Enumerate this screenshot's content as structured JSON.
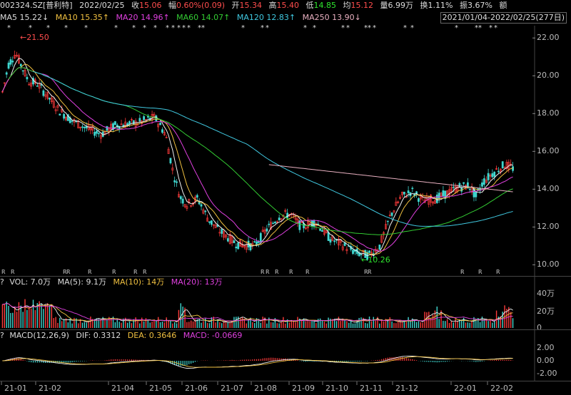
{
  "header": {
    "code": "002324.SZ[普利特]",
    "date": "2022/02/25",
    "close_label": "收",
    "close": "15.06",
    "change_label": "幅",
    "change": "0.60%(0.09)",
    "open_label": "开",
    "open": "15.34",
    "high_label": "高",
    "high": "15.40",
    "low_label": "低",
    "low": "14.85",
    "avg_label": "均",
    "avg": "15.12",
    "volume_label": "量",
    "volume": "6.99万",
    "turnover_label": "换",
    "turnover": "1.11%",
    "amp_label": "振",
    "amp": "3.67%",
    "extra_label": "额"
  },
  "ma": {
    "ma5": "MA5 15.22↓",
    "ma10": "MA10 15.35↑",
    "ma20": "MA20 14.96↑",
    "ma60": "MA60 14.07↑",
    "ma120": "MA120 12.83↑",
    "ma250": "MA250 13.90↓"
  },
  "range": "2021/01/04-2022/02/25(277日)",
  "price_axis": [
    "22.00",
    "20.00",
    "18.00",
    "16.00",
    "14.00",
    "12.00",
    "10.00"
  ],
  "annotations": {
    "high": "21.50",
    "low": "10.26"
  },
  "vol_header": {
    "label": "VOL: 7.0万",
    "ma5": "MA(5): 9.1万",
    "ma10": "MA(10): 14万",
    "ma20": "MA(20): 13万"
  },
  "vol_axis": [
    "40万",
    "20万",
    "0"
  ],
  "macd_header": {
    "label": "MACD(12,26,9)",
    "dif": "DIF: 0.3312",
    "dea": "DEA: 0.3646",
    "macd": "MACD: -0.0669"
  },
  "macd_axis": [
    "2.00",
    "0.00",
    "-2.00"
  ],
  "x_axis": [
    "21-01",
    "21-02",
    "21-04",
    "21-05",
    "21-06",
    "21-07",
    "21-08",
    "21-09",
    "21-10",
    "21-11",
    "21-12",
    "22-01",
    "22-02"
  ],
  "colors": {
    "up": "#ff3b3b",
    "down": "#3fd7d0",
    "ma5": "#f0f0f0",
    "ma10": "#f0c040",
    "ma20": "#e040e0",
    "ma60": "#33cc33",
    "ma120": "#40c8e0",
    "ma250": "#e8b0c0"
  }
}
